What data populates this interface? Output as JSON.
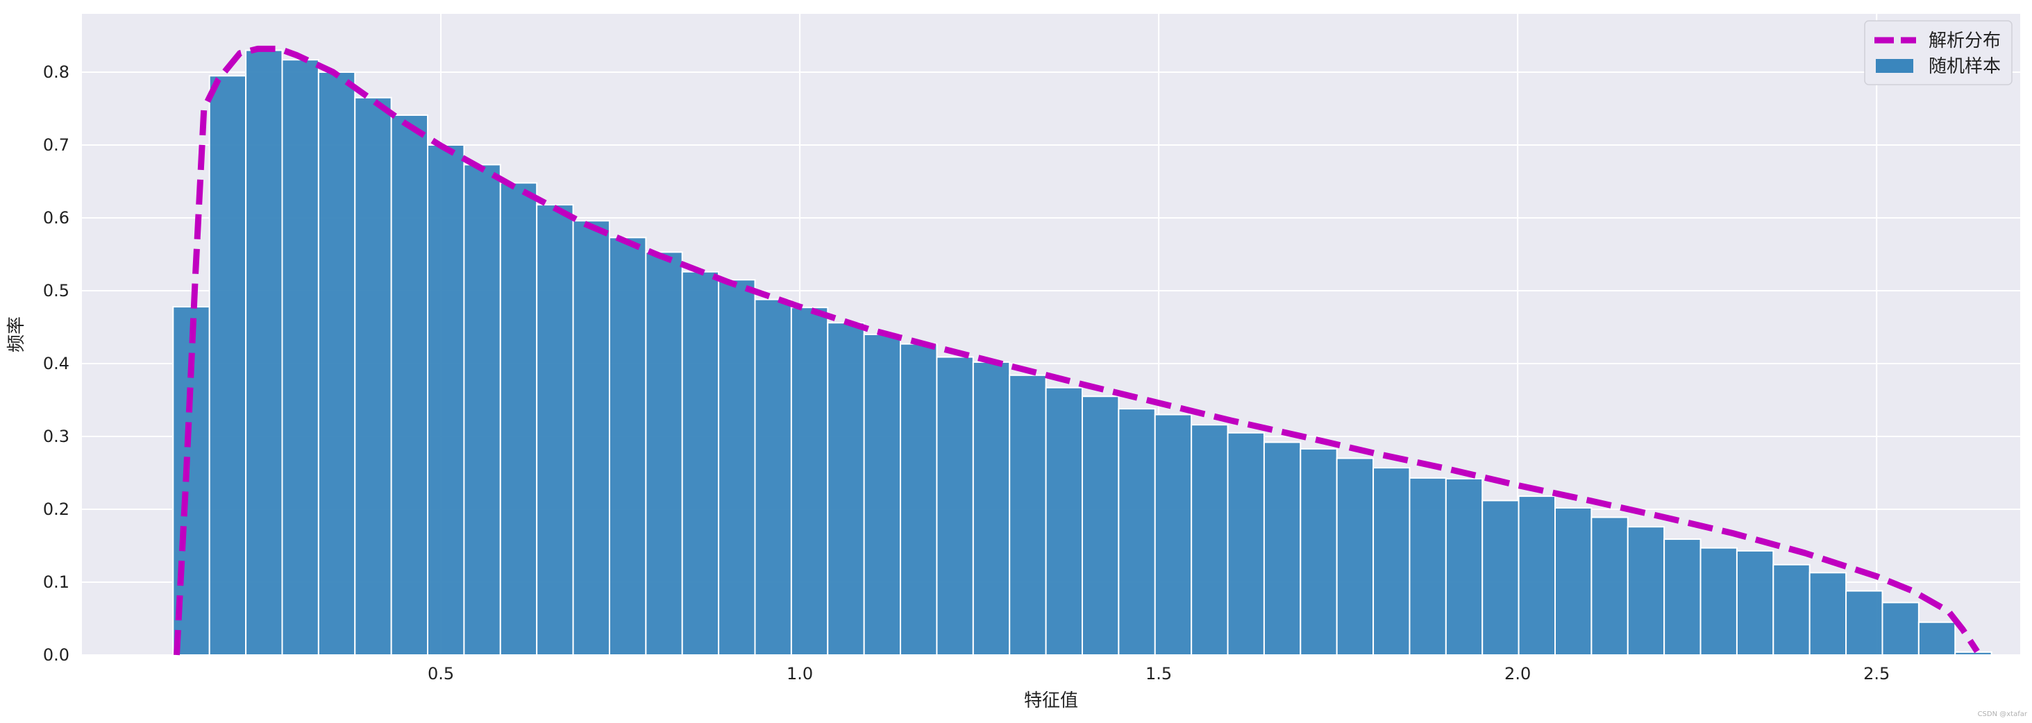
{
  "chart_data": {
    "type": "bar",
    "xlabel": "特征值",
    "ylabel": "频率",
    "xlim": [
      0.0,
      2.7
    ],
    "ylim": [
      0.0,
      0.88
    ],
    "x_ticks": [
      0.5,
      1.0,
      1.5,
      2.0,
      2.5
    ],
    "x_tick_labels": [
      "0.5",
      "1.0",
      "1.5",
      "2.0",
      "2.5"
    ],
    "y_ticks": [
      0.0,
      0.1,
      0.2,
      0.3,
      0.4,
      0.5,
      0.6,
      0.7,
      0.8
    ],
    "y_tick_labels": [
      "0.0",
      "0.1",
      "0.2",
      "0.3",
      "0.4",
      "0.5",
      "0.6",
      "0.7",
      "0.8"
    ],
    "grid": true,
    "legend_position": "top-right",
    "colors": {
      "histogram": "#3a86bd",
      "analytic": "#c000c0",
      "plot_background": "#eaeaf2"
    },
    "series": [
      {
        "name": "随机样本",
        "kind": "histogram",
        "bin_start": 0.127,
        "bin_width": 0.05066,
        "values": [
          0.478,
          0.795,
          0.83,
          0.817,
          0.8,
          0.765,
          0.741,
          0.7,
          0.673,
          0.648,
          0.618,
          0.596,
          0.573,
          0.553,
          0.526,
          0.515,
          0.488,
          0.477,
          0.456,
          0.44,
          0.427,
          0.409,
          0.402,
          0.384,
          0.367,
          0.355,
          0.338,
          0.33,
          0.316,
          0.305,
          0.292,
          0.283,
          0.27,
          0.257,
          0.243,
          0.242,
          0.212,
          0.218,
          0.202,
          0.189,
          0.176,
          0.159,
          0.147,
          0.143,
          0.124,
          0.113,
          0.088,
          0.072,
          0.045,
          0.004
        ]
      },
      {
        "name": "解析分布",
        "kind": "line",
        "style": "dashed",
        "x": [
          0.132,
          0.145,
          0.158,
          0.17,
          0.19,
          0.22,
          0.245,
          0.275,
          0.3,
          0.35,
          0.4,
          0.45,
          0.5,
          0.6,
          0.7,
          0.8,
          0.9,
          1.0,
          1.1,
          1.2,
          1.3,
          1.4,
          1.5,
          1.6,
          1.7,
          1.8,
          1.9,
          2.0,
          2.1,
          2.2,
          2.3,
          2.4,
          2.5,
          2.55,
          2.6,
          2.62,
          2.64
        ],
        "y": [
          0.0,
          0.24,
          0.52,
          0.75,
          0.79,
          0.826,
          0.832,
          0.832,
          0.823,
          0.8,
          0.765,
          0.73,
          0.699,
          0.644,
          0.592,
          0.55,
          0.512,
          0.478,
          0.446,
          0.42,
          0.395,
          0.37,
          0.346,
          0.322,
          0.3,
          0.277,
          0.256,
          0.233,
          0.212,
          0.19,
          0.167,
          0.14,
          0.108,
          0.088,
          0.06,
          0.035,
          0.005
        ]
      }
    ]
  },
  "watermark": "CSDN @xtafar"
}
